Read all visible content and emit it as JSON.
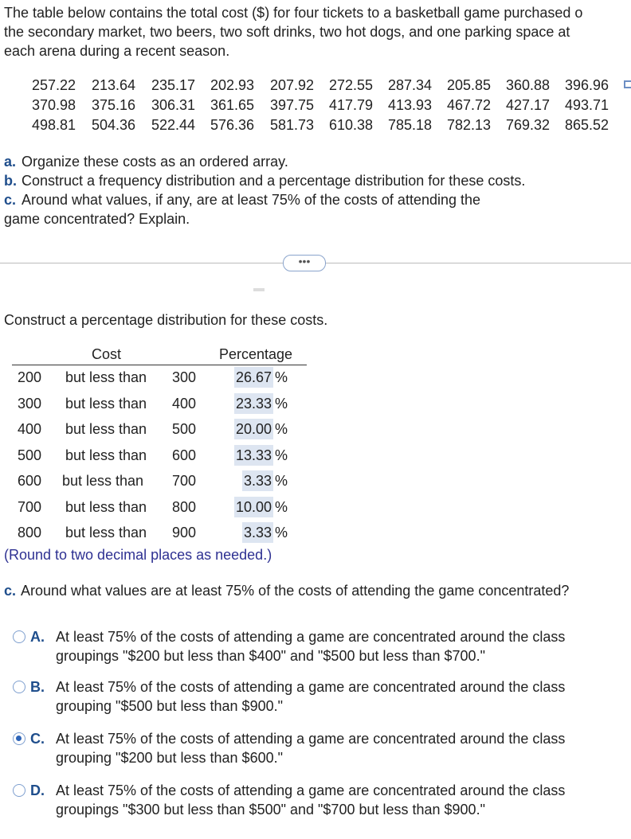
{
  "intro": [
    "The table below contains the total cost ($) for four tickets to a basketball game purchased o",
    "the secondary market, two beers, two soft drinks, two hot dogs, and one parking space at",
    "each arena during a recent season."
  ],
  "costs": [
    [
      257.22,
      213.64,
      235.17,
      202.93,
      207.92,
      272.55,
      287.34,
      205.85,
      360.88,
      396.96
    ],
    [
      370.98,
      375.16,
      306.31,
      361.65,
      397.75,
      417.79,
      413.93,
      467.72,
      427.17,
      493.71
    ],
    [
      498.81,
      504.36,
      522.44,
      576.36,
      581.73,
      610.38,
      785.18,
      782.13,
      769.32,
      865.52
    ]
  ],
  "tasks": [
    {
      "label": "a.",
      "lines": [
        "Organize these costs as an ordered array."
      ]
    },
    {
      "label": "b.",
      "lines": [
        "Construct a frequency distribution and a percentage distribution for these costs."
      ]
    },
    {
      "label": "c.",
      "lines": [
        "Around what values, if any, are at least 75% of the costs of attending the",
        "game concentrated? Explain."
      ]
    }
  ],
  "prompt": "Construct a percentage distribution for these costs.",
  "table": {
    "header": [
      "Cost",
      "Percentage"
    ],
    "rows": [
      {
        "low": 200,
        "mid": "but less than",
        "high": 300,
        "percentage": "26.67",
        "sign": "%"
      },
      {
        "low": 300,
        "mid": "but less than",
        "high": 400,
        "percentage": "23.33",
        "sign": "%"
      },
      {
        "low": 400,
        "mid": "but less than",
        "high": 500,
        "percentage": "20.00",
        "sign": "%"
      },
      {
        "low": 500,
        "mid": "but less than",
        "high": 600,
        "percentage": "13.33",
        "sign": "%"
      },
      {
        "low": 600,
        "mid": "but less than",
        "high": 700,
        "percentage": "3.33",
        "sign": "%"
      },
      {
        "low": 700,
        "mid": "but less than",
        "high": 800,
        "percentage": "10.00",
        "sign": "%"
      },
      {
        "low": 800,
        "mid": "but less than",
        "high": 900,
        "percentage": "3.33",
        "sign": "%"
      }
    ]
  },
  "note": "(Round to two decimal places as needed.)",
  "question": {
    "label": "c.",
    "text": "Around what values are at least 75% of the costs of attending the game concentrated?"
  },
  "options": [
    {
      "letter": "A.",
      "lines": [
        "At least 75% of the costs of attending a game are concentrated around the class",
        "groupings \"$200 but less than $400\" and \"$500 but less than $700.\""
      ],
      "selected": false
    },
    {
      "letter": "B.",
      "lines": [
        "At least 75% of the costs of attending a game are concentrated around the class",
        "grouping \"$500 but less than $900.\""
      ],
      "selected": false
    },
    {
      "letter": "C.",
      "lines": [
        "At least 75% of the costs of attending a game are concentrated around the class",
        "grouping \"$200 but less than $600.\""
      ],
      "selected": true
    },
    {
      "letter": "D.",
      "lines": [
        "At least 75% of the costs of attending a game are concentrated around the class",
        "groupings \"$300 but less than $500\" and \"$700 but less than $900.\""
      ],
      "selected": false
    }
  ]
}
